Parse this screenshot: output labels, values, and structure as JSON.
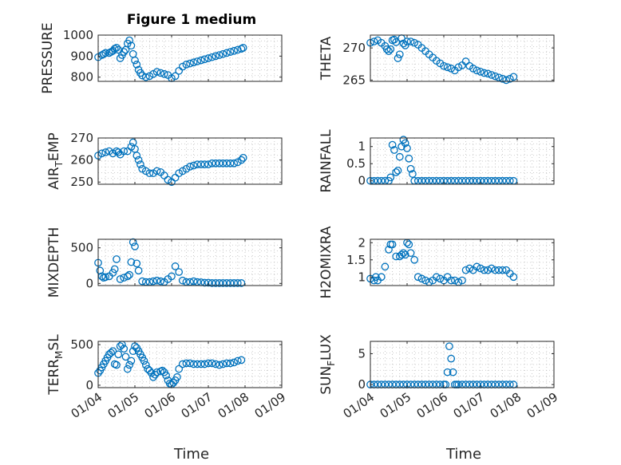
{
  "figure": {
    "title": "Figure 1 medium",
    "marker_color": "#0072BD"
  },
  "chart_data": [
    {
      "type": "scatter",
      "title": "Figure 1 medium",
      "xlabel": "",
      "ylabel": "PRESSURE",
      "xlim": [
        0,
        5
      ],
      "xticks": [
        0,
        1,
        2,
        3,
        4,
        5
      ],
      "xticklabels": [],
      "ylim": [
        780,
        1000
      ],
      "yticks": [
        800,
        900,
        1000
      ],
      "yticklabels": [
        "800",
        "900",
        "1000"
      ],
      "grid": true,
      "x": [
        0.0,
        0.1,
        0.15,
        0.2,
        0.3,
        0.35,
        0.4,
        0.45,
        0.5,
        0.55,
        0.6,
        0.65,
        0.7,
        0.75,
        0.8,
        0.85,
        0.9,
        0.95,
        1.0,
        1.05,
        1.1,
        1.15,
        1.2,
        1.3,
        1.4,
        1.5,
        1.6,
        1.7,
        1.8,
        1.9,
        2.0,
        2.1,
        2.2,
        2.3,
        2.4,
        2.5,
        2.6,
        2.7,
        2.8,
        2.9,
        3.0,
        3.1,
        3.2,
        3.3,
        3.4,
        3.5,
        3.6,
        3.7,
        3.8,
        3.9,
        3.95
      ],
      "y": [
        895,
        905,
        910,
        915,
        915,
        920,
        925,
        935,
        940,
        930,
        890,
        905,
        920,
        930,
        960,
        975,
        950,
        910,
        880,
        860,
        835,
        820,
        808,
        800,
        805,
        815,
        825,
        820,
        815,
        810,
        795,
        805,
        830,
        850,
        860,
        865,
        870,
        875,
        880,
        885,
        890,
        895,
        900,
        905,
        910,
        915,
        920,
        925,
        930,
        935,
        940
      ]
    },
    {
      "type": "scatter",
      "title": "",
      "xlabel": "",
      "ylabel": "THETA",
      "xlim": [
        0,
        5
      ],
      "xticks": [
        0,
        1,
        2,
        3,
        4,
        5
      ],
      "xticklabels": [],
      "ylim": [
        264.8,
        272
      ],
      "yticks": [
        265,
        270
      ],
      "yticklabels": [
        "265",
        "270"
      ],
      "grid": true,
      "x": [
        0.0,
        0.1,
        0.2,
        0.3,
        0.4,
        0.45,
        0.5,
        0.55,
        0.6,
        0.65,
        0.7,
        0.75,
        0.8,
        0.85,
        0.9,
        0.95,
        1.0,
        1.1,
        1.2,
        1.3,
        1.4,
        1.5,
        1.6,
        1.7,
        1.8,
        1.9,
        2.0,
        2.1,
        2.2,
        2.3,
        2.4,
        2.5,
        2.6,
        2.7,
        2.8,
        2.9,
        3.0,
        3.1,
        3.2,
        3.3,
        3.4,
        3.5,
        3.6,
        3.7,
        3.8,
        3.9
      ],
      "y": [
        270.8,
        271.0,
        271.2,
        270.8,
        270.3,
        269.8,
        269.5,
        269.8,
        271.2,
        271.3,
        270.9,
        268.4,
        269.0,
        271.5,
        270.7,
        270.4,
        271.0,
        271.0,
        270.8,
        270.5,
        270.0,
        269.5,
        269.0,
        268.5,
        268.0,
        267.6,
        267.2,
        267.0,
        266.8,
        266.5,
        267.0,
        267.3,
        267.9,
        267.2,
        266.8,
        266.5,
        266.3,
        266.1,
        266.0,
        265.8,
        265.6,
        265.4,
        265.2,
        265.0,
        265.2,
        265.5
      ]
    },
    {
      "type": "scatter",
      "title": "",
      "xlabel": "",
      "ylabel": "AIR_TEMP",
      "xlim": [
        0,
        5
      ],
      "xticks": [
        0,
        1,
        2,
        3,
        4,
        5
      ],
      "xticklabels": [],
      "ylim": [
        249,
        270
      ],
      "yticks": [
        250,
        260,
        270
      ],
      "yticklabels": [
        "250",
        "260",
        "270"
      ],
      "grid": true,
      "x": [
        0.0,
        0.1,
        0.2,
        0.3,
        0.4,
        0.5,
        0.55,
        0.6,
        0.7,
        0.8,
        0.9,
        0.95,
        1.0,
        1.05,
        1.1,
        1.15,
        1.2,
        1.3,
        1.4,
        1.5,
        1.6,
        1.7,
        1.8,
        1.9,
        2.0,
        2.1,
        2.2,
        2.3,
        2.4,
        2.5,
        2.6,
        2.7,
        2.8,
        2.9,
        3.0,
        3.1,
        3.2,
        3.3,
        3.4,
        3.5,
        3.6,
        3.7,
        3.8,
        3.9,
        3.95
      ],
      "y": [
        262,
        263,
        263.5,
        264,
        263,
        264,
        263.5,
        262.5,
        264,
        264,
        266,
        268,
        265,
        262,
        260,
        258,
        256,
        255,
        254,
        254,
        255,
        254.5,
        253,
        251,
        250,
        252,
        254,
        255,
        256,
        257,
        257.5,
        258,
        258,
        258,
        258,
        258.5,
        258.5,
        258.5,
        258.5,
        258.5,
        258.5,
        258.5,
        259,
        260,
        261
      ]
    },
    {
      "type": "scatter",
      "title": "",
      "xlabel": "",
      "ylabel": "RAINFALL",
      "xlim": [
        0,
        5
      ],
      "xticks": [
        0,
        1,
        2,
        3,
        4,
        5
      ],
      "xticklabels": [],
      "ylim": [
        -0.1,
        1.25
      ],
      "yticks": [
        0,
        0.5,
        1
      ],
      "yticklabels": [
        "0",
        "0.5",
        "1"
      ],
      "grid": true,
      "x": [
        0.0,
        0.1,
        0.2,
        0.3,
        0.4,
        0.5,
        0.55,
        0.6,
        0.65,
        0.7,
        0.75,
        0.8,
        0.85,
        0.9,
        0.95,
        1.0,
        1.05,
        1.1,
        1.15,
        1.2,
        1.3,
        1.4,
        1.5,
        1.6,
        1.7,
        1.8,
        1.9,
        2.0,
        2.1,
        2.2,
        2.3,
        2.4,
        2.5,
        2.6,
        2.7,
        2.8,
        2.9,
        3.0,
        3.1,
        3.2,
        3.3,
        3.4,
        3.5,
        3.6,
        3.7,
        3.8,
        3.9
      ],
      "y": [
        0,
        0,
        0,
        0,
        0,
        0,
        0.1,
        1.05,
        0.9,
        0.25,
        0.3,
        0.7,
        1.0,
        1.2,
        1.1,
        0.95,
        0.65,
        0.35,
        0.2,
        0,
        0,
        0,
        0,
        0,
        0,
        0,
        0,
        0,
        0,
        0,
        0,
        0,
        0,
        0,
        0,
        0,
        0,
        0,
        0,
        0,
        0,
        0,
        0,
        0,
        0,
        0,
        0
      ]
    },
    {
      "type": "scatter",
      "title": "",
      "xlabel": "",
      "ylabel": "MIXDEPTH",
      "xlim": [
        0,
        5
      ],
      "xticks": [
        0,
        1,
        2,
        3,
        4,
        5
      ],
      "xticklabels": [],
      "ylim": [
        -30,
        620
      ],
      "yticks": [
        0,
        500
      ],
      "yticklabels": [
        "0",
        "500"
      ],
      "grid": true,
      "x": [
        0.0,
        0.05,
        0.1,
        0.15,
        0.2,
        0.3,
        0.4,
        0.45,
        0.5,
        0.6,
        0.7,
        0.8,
        0.85,
        0.9,
        0.95,
        1.0,
        1.05,
        1.1,
        1.2,
        1.3,
        1.4,
        1.5,
        1.6,
        1.7,
        1.8,
        1.9,
        2.0,
        2.1,
        2.2,
        2.3,
        2.4,
        2.5,
        2.6,
        2.7,
        2.8,
        2.9,
        3.0,
        3.1,
        3.2,
        3.3,
        3.4,
        3.5,
        3.6,
        3.7,
        3.8,
        3.9
      ],
      "y": [
        290,
        180,
        100,
        80,
        90,
        100,
        150,
        200,
        340,
        60,
        80,
        100,
        120,
        300,
        580,
        520,
        280,
        180,
        30,
        20,
        20,
        30,
        40,
        30,
        20,
        60,
        100,
        240,
        160,
        40,
        20,
        20,
        30,
        20,
        15,
        10,
        10,
        5,
        5,
        5,
        5,
        5,
        5,
        5,
        5,
        5
      ]
    },
    {
      "type": "scatter",
      "title": "",
      "xlabel": "",
      "ylabel": "H2OMIXRA",
      "xlim": [
        0,
        5
      ],
      "xticks": [
        0,
        1,
        2,
        3,
        4,
        5
      ],
      "xticklabels": [],
      "ylim": [
        0.75,
        2.1
      ],
      "yticks": [
        1,
        1.5,
        2
      ],
      "yticklabels": [
        "1",
        "1.5",
        "2"
      ],
      "grid": true,
      "x": [
        0.0,
        0.1,
        0.15,
        0.2,
        0.3,
        0.4,
        0.5,
        0.55,
        0.6,
        0.7,
        0.8,
        0.85,
        0.9,
        0.95,
        1.0,
        1.05,
        1.1,
        1.2,
        1.3,
        1.4,
        1.5,
        1.6,
        1.7,
        1.8,
        1.9,
        2.0,
        2.1,
        2.2,
        2.3,
        2.4,
        2.5,
        2.6,
        2.7,
        2.8,
        2.9,
        3.0,
        3.1,
        3.2,
        3.3,
        3.4,
        3.5,
        3.6,
        3.7,
        3.8,
        3.9
      ],
      "y": [
        0.95,
        0.9,
        1.0,
        0.9,
        1.0,
        1.3,
        1.8,
        1.95,
        1.95,
        1.6,
        1.6,
        1.65,
        1.7,
        1.65,
        2.0,
        1.95,
        1.7,
        1.5,
        1.0,
        0.95,
        0.9,
        0.85,
        0.9,
        1.0,
        0.95,
        0.9,
        1.0,
        0.9,
        0.9,
        0.85,
        0.9,
        1.2,
        1.25,
        1.2,
        1.3,
        1.25,
        1.2,
        1.2,
        1.25,
        1.2,
        1.2,
        1.2,
        1.2,
        1.1,
        1.0
      ]
    },
    {
      "type": "scatter",
      "title": "",
      "xlabel": "Time",
      "ylabel": "TERR_MSL",
      "xlim": [
        0,
        5
      ],
      "xticks": [
        0,
        1,
        2,
        3,
        4,
        5
      ],
      "xticklabels": [
        "01/04",
        "01/05",
        "01/06",
        "01/07",
        "01/08",
        "01/09"
      ],
      "ylim": [
        -30,
        540
      ],
      "yticks": [
        0,
        500
      ],
      "yticklabels": [
        "0",
        "500"
      ],
      "grid": true,
      "x": [
        0.0,
        0.05,
        0.1,
        0.15,
        0.2,
        0.25,
        0.3,
        0.35,
        0.4,
        0.45,
        0.5,
        0.55,
        0.6,
        0.65,
        0.7,
        0.75,
        0.8,
        0.85,
        0.9,
        0.95,
        1.0,
        1.05,
        1.1,
        1.15,
        1.2,
        1.25,
        1.3,
        1.35,
        1.4,
        1.45,
        1.5,
        1.55,
        1.6,
        1.7,
        1.75,
        1.8,
        1.85,
        1.9,
        1.95,
        2.0,
        2.05,
        2.1,
        2.15,
        2.2,
        2.3,
        2.4,
        2.5,
        2.6,
        2.7,
        2.8,
        2.9,
        3.0,
        3.1,
        3.2,
        3.3,
        3.4,
        3.5,
        3.6,
        3.7,
        3.8,
        3.9
      ],
      "y": [
        150,
        180,
        220,
        260,
        300,
        340,
        380,
        400,
        420,
        260,
        250,
        380,
        480,
        500,
        450,
        350,
        200,
        250,
        300,
        420,
        480,
        460,
        420,
        380,
        340,
        300,
        250,
        200,
        180,
        150,
        100,
        130,
        160,
        170,
        180,
        160,
        120,
        60,
        20,
        10,
        30,
        60,
        100,
        200,
        260,
        270,
        270,
        260,
        260,
        260,
        260,
        270,
        270,
        260,
        250,
        260,
        270,
        270,
        280,
        300,
        310
      ]
    },
    {
      "type": "scatter",
      "title": "",
      "xlabel": "Time",
      "ylabel": "SUN_FLUX",
      "xlim": [
        0,
        5
      ],
      "xticks": [
        0,
        1,
        2,
        3,
        4,
        5
      ],
      "xticklabels": [
        "01/04",
        "01/05",
        "01/06",
        "01/07",
        "01/08",
        "01/09"
      ],
      "ylim": [
        -0.5,
        7
      ],
      "yticks": [
        0,
        5
      ],
      "yticklabels": [
        "0",
        "5"
      ],
      "grid": true,
      "x": [
        0.0,
        0.1,
        0.2,
        0.3,
        0.4,
        0.5,
        0.6,
        0.7,
        0.8,
        0.9,
        1.0,
        1.1,
        1.2,
        1.3,
        1.4,
        1.5,
        1.6,
        1.7,
        1.8,
        1.9,
        2.0,
        2.05,
        2.1,
        2.15,
        2.2,
        2.25,
        2.3,
        2.35,
        2.4,
        2.5,
        2.6,
        2.7,
        2.8,
        2.9,
        3.0,
        3.1,
        3.2,
        3.3,
        3.4,
        3.5,
        3.6,
        3.7,
        3.8,
        3.9
      ],
      "y": [
        0,
        0,
        0,
        0,
        0,
        0,
        0,
        0,
        0,
        0,
        0,
        0,
        0,
        0,
        0,
        0,
        0,
        0,
        0,
        0,
        0,
        0,
        2.0,
        6.2,
        4.2,
        2.0,
        0,
        0,
        0,
        0,
        0,
        0,
        0,
        0,
        0,
        0,
        0,
        0,
        0,
        0,
        0,
        0,
        0,
        0
      ]
    }
  ]
}
